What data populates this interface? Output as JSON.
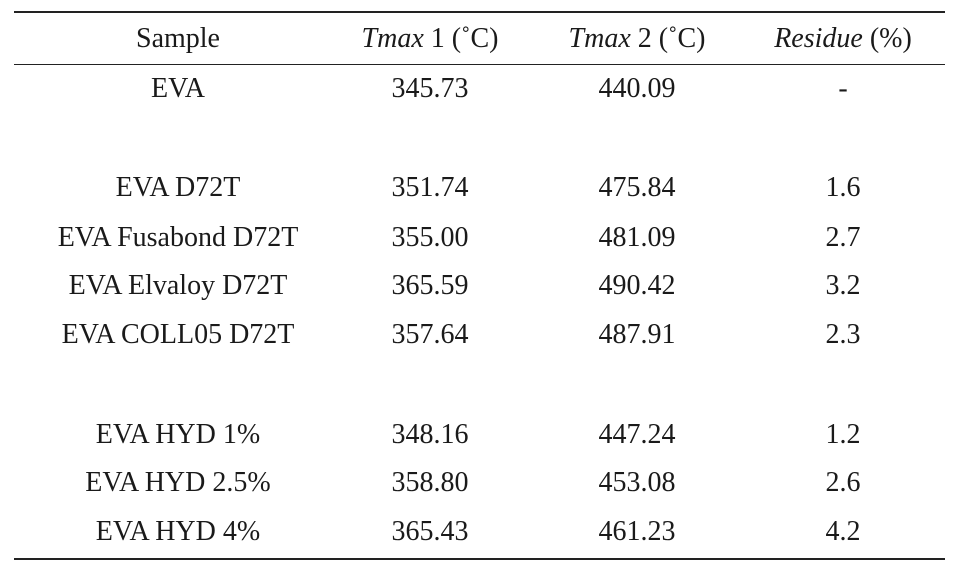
{
  "table": {
    "headers": [
      {
        "main": "Sample",
        "suffix": ""
      },
      {
        "main": "Tmax",
        "suffix": " 1 (˚C)"
      },
      {
        "main": "Tmax",
        "suffix": " 2 (˚C)"
      },
      {
        "main": "Residue",
        "suffix": " (%)"
      }
    ],
    "rows": [
      {
        "sample": "EVA",
        "tmax1": "345.73",
        "tmax2": "440.09",
        "residue": "-"
      },
      {
        "sample": "EVA D72T",
        "tmax1": "351.74",
        "tmax2": "475.84",
        "residue": "1.6"
      },
      {
        "sample": "EVA Fusabond D72T",
        "tmax1": "355.00",
        "tmax2": "481.09",
        "residue": "2.7"
      },
      {
        "sample": "EVA Elvaloy D72T",
        "tmax1": "365.59",
        "tmax2": "490.42",
        "residue": "3.2"
      },
      {
        "sample": "EVA COLL05 D72T",
        "tmax1": "357.64",
        "tmax2": "487.91",
        "residue": "2.3"
      },
      {
        "sample": "EVA HYD 1%",
        "tmax1": "348.16",
        "tmax2": "447.24",
        "residue": "1.2"
      },
      {
        "sample": "EVA HYD 2.5%",
        "tmax1": "358.80",
        "tmax2": "453.08",
        "residue": "2.6"
      },
      {
        "sample": "EVA HYD 4%",
        "tmax1": "365.43",
        "tmax2": "461.23",
        "residue": "4.2"
      }
    ]
  }
}
